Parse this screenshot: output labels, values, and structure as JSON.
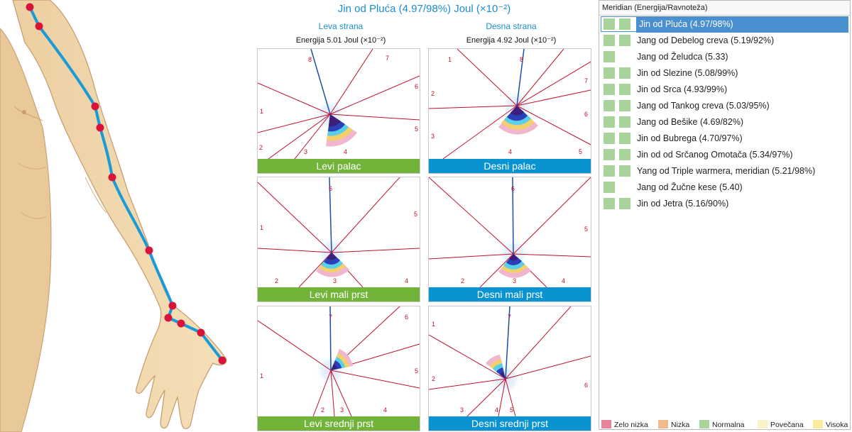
{
  "header": {
    "title": "Jin od Pluća (4.97/98%) Joul (×10⁻²)",
    "left_side": "Leva strana",
    "right_side": "Desna strana",
    "left_energy": "Energija 5.01 Joul (×10⁻²)",
    "right_energy": "Energija 4.92 Joul (×10⁻²)"
  },
  "panels": [
    {
      "caption": "Levi palac",
      "color": "#72b43a",
      "numbers": [
        "8",
        "7",
        "6",
        "5",
        "4",
        "3",
        "2",
        "1"
      ]
    },
    {
      "caption": "Desni palac",
      "color": "#0a93d1",
      "numbers": [
        "1",
        "8",
        "2",
        "7",
        "6",
        "3",
        "4",
        "5"
      ]
    },
    {
      "caption": "Levi mali prst",
      "color": "#72b43a",
      "numbers": [
        "6",
        "5",
        "1",
        "2",
        "3",
        "4"
      ]
    },
    {
      "caption": "Desni mali prst",
      "color": "#0a93d1",
      "numbers": [
        "6",
        "5",
        "2",
        "3",
        "4"
      ]
    },
    {
      "caption": "Levi srednji prst",
      "color": "#72b43a",
      "numbers": [
        "7",
        "6",
        "5",
        "1",
        "2",
        "3",
        "4"
      ]
    },
    {
      "caption": "Desni srednji prst",
      "color": "#0a93d1",
      "numbers": [
        "1",
        "7",
        "2",
        "6",
        "3",
        "4",
        "5"
      ]
    }
  ],
  "meridian_list": {
    "header": "Meridian (Energija/Ravnoteža)",
    "items": [
      {
        "label": "Jin od Pluća (4.97/98%)",
        "squares": 2,
        "selected": true
      },
      {
        "label": "Jang od Debelog creva (5.19/92%)",
        "squares": 1
      },
      {
        "label": "Jang od Želudca (5.33)",
        "squares": 1
      },
      {
        "label": "Jin od Slezine (5.08/99%)",
        "squares": 2
      },
      {
        "label": "Jin od Srca (4.93/99%)",
        "squares": 2
      },
      {
        "label": "Jang od Tankog creva (5.03/95%)",
        "squares": 2
      },
      {
        "label": "Jang od Bešike (4.69/82%)",
        "squares": 2
      },
      {
        "label": "Jin od Bubrega (4.70/97%)",
        "squares": 2
      },
      {
        "label": "Jin od od Srčanog Omotača (5.34/97%)",
        "squares": 2
      },
      {
        "label": "Yang od Triple warmera, meridian (5.21/98%)",
        "squares": 2
      },
      {
        "label": "Jang od Žučne kese (5.40)",
        "squares": 1
      },
      {
        "label": "Jin od Jetra (5.16/90%)",
        "squares": 2
      }
    ]
  },
  "legend": [
    {
      "label": "Zelo nizka",
      "color": "#e8839a"
    },
    {
      "label": "Nizka",
      "color": "#f2b98a"
    },
    {
      "label": "Normalna",
      "color": "#a8d49c"
    },
    {
      "label": "Povečana",
      "color": "#fbf3c8"
    },
    {
      "label": "Visoka",
      "color": "#f8ec9b"
    }
  ],
  "colors": {
    "accent": "#1a8fd0",
    "meridian_line": "#1a9ad6",
    "point": "#d8143a",
    "sector_line": "#c0102a"
  }
}
